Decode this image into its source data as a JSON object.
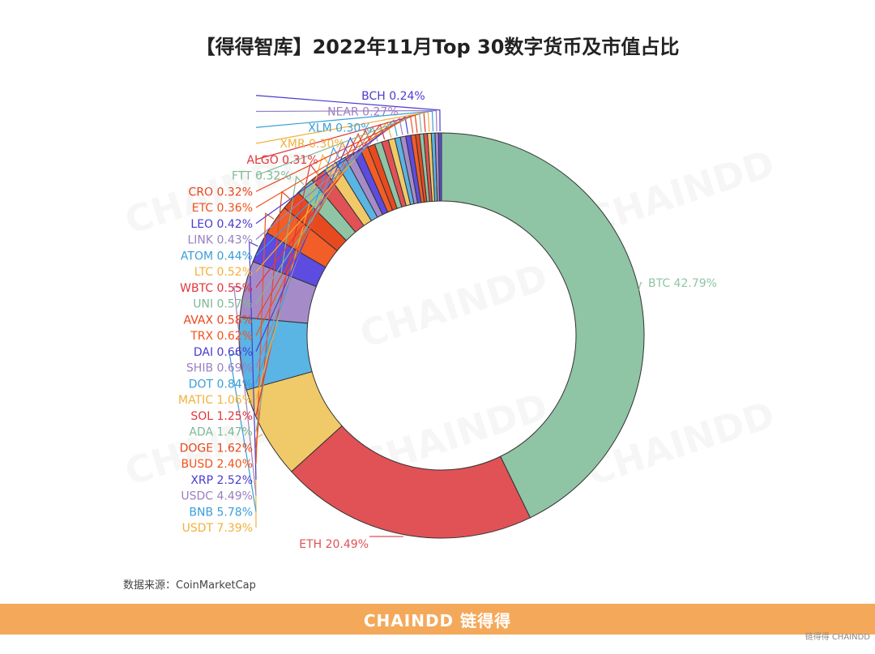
{
  "title": "【得得智库】2022年11月Top 30数字货币及市值占比",
  "source": "数据来源：CoinMarketCap",
  "footer": {
    "brand": "CHAINDD 链得得",
    "corner_logo": "链得得 CHAINDD"
  },
  "watermark": "CHAINDD",
  "chart_data": {
    "type": "pie",
    "style": "donut",
    "unit": "%",
    "slices": [
      {
        "label": "BTC",
        "value": 42.79,
        "color": "#8fc4a5",
        "label_color": "#8fc4a5"
      },
      {
        "label": "ETH",
        "value": 20.49,
        "color": "#e05255",
        "label_color": "#e05255"
      },
      {
        "label": "USDT",
        "value": 7.39,
        "color": "#f0ca69",
        "label_color": "#f0b13a"
      },
      {
        "label": "BNB",
        "value": 5.78,
        "color": "#5ab4e4",
        "label_color": "#3a9fd8"
      },
      {
        "label": "USDC",
        "value": 4.49,
        "color": "#a58cc9",
        "label_color": "#9a7fc2"
      },
      {
        "label": "XRP",
        "value": 2.52,
        "color": "#5d4ce0",
        "label_color": "#4b3bd0"
      },
      {
        "label": "BUSD",
        "value": 2.4,
        "color": "#f25d28",
        "label_color": "#f0531b"
      },
      {
        "label": "DOGE",
        "value": 1.62,
        "color": "#e84a20",
        "label_color": "#e8451b"
      },
      {
        "label": "ADA",
        "value": 1.47,
        "color": "#8fc4a5",
        "label_color": "#7fb894"
      },
      {
        "label": "SOL",
        "value": 1.25,
        "color": "#e05255",
        "label_color": "#e0353a"
      },
      {
        "label": "MATIC",
        "value": 1.06,
        "color": "#f0ca69",
        "label_color": "#f0b13a"
      },
      {
        "label": "DOT",
        "value": 0.84,
        "color": "#5ab4e4",
        "label_color": "#3a9fd8"
      },
      {
        "label": "SHIB",
        "value": 0.69,
        "color": "#a58cc9",
        "label_color": "#9a7fc2"
      },
      {
        "label": "DAI",
        "value": 0.66,
        "color": "#5d4ce0",
        "label_color": "#4b3bd0"
      },
      {
        "label": "TRX",
        "value": 0.62,
        "color": "#f25d28",
        "label_color": "#f0531b"
      },
      {
        "label": "AVAX",
        "value": 0.58,
        "color": "#e84a20",
        "label_color": "#e8451b"
      },
      {
        "label": "UNI",
        "value": 0.57,
        "color": "#8fc4a5",
        "label_color": "#7fb894"
      },
      {
        "label": "WBTC",
        "value": 0.55,
        "color": "#e05255",
        "label_color": "#e0353a"
      },
      {
        "label": "LTC",
        "value": 0.52,
        "color": "#f0ca69",
        "label_color": "#f0b13a"
      },
      {
        "label": "ATOM",
        "value": 0.44,
        "color": "#5ab4e4",
        "label_color": "#3a9fd8"
      },
      {
        "label": "LINK",
        "value": 0.43,
        "color": "#a58cc9",
        "label_color": "#9a7fc2"
      },
      {
        "label": "LEO",
        "value": 0.42,
        "color": "#5d4ce0",
        "label_color": "#4b3bd0"
      },
      {
        "label": "ETC",
        "value": 0.36,
        "color": "#f25d28",
        "label_color": "#f0531b"
      },
      {
        "label": "CRO",
        "value": 0.32,
        "color": "#e84a20",
        "label_color": "#e8451b"
      },
      {
        "label": "FTT",
        "value": 0.32,
        "color": "#8fc4a5",
        "label_color": "#7fb894"
      },
      {
        "label": "ALGO",
        "value": 0.31,
        "color": "#e05255",
        "label_color": "#e0353a"
      },
      {
        "label": "XMR",
        "value": 0.3,
        "color": "#f0ca69",
        "label_color": "#f0b13a"
      },
      {
        "label": "XLM",
        "value": 0.3,
        "color": "#5ab4e4",
        "label_color": "#3a9fd8"
      },
      {
        "label": "NEAR",
        "value": 0.27,
        "color": "#a58cc9",
        "label_color": "#9a7fc2"
      },
      {
        "label": "BCH",
        "value": 0.24,
        "color": "#5d4ce0",
        "label_color": "#4b3bd0"
      }
    ]
  }
}
